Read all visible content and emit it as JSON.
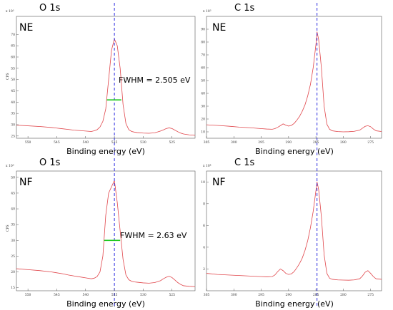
{
  "chart_data": [
    {
      "type": "line",
      "title": "O 1s",
      "label": "NE",
      "xlabel": "Binding energy (eV)",
      "ylabel": "CPS",
      "y_exponent": "x 10³",
      "xlim": [
        552,
        521
      ],
      "ylim": [
        24,
        78
      ],
      "xticks": [
        "550",
        "545",
        "540",
        "535",
        "530",
        "525"
      ],
      "yticks": [
        "70",
        "65",
        "60",
        "55",
        "50",
        "45",
        "40",
        "35",
        "30",
        "25"
      ],
      "peak_x": 535.0,
      "fwhm": {
        "text": "FWHM = 2.505 eV",
        "left": 536.3,
        "right": 533.8,
        "y": 41
      },
      "x": [
        552,
        550,
        548,
        546,
        545,
        544,
        543,
        542,
        541,
        540,
        539,
        538.5,
        538,
        537.5,
        537,
        536.5,
        536,
        535.5,
        535,
        534.5,
        534,
        533.5,
        533,
        532.5,
        532,
        531.5,
        531,
        530,
        529,
        528,
        527,
        526.5,
        526,
        525.5,
        525,
        524.5,
        524,
        523.5,
        523,
        522,
        521
      ],
      "y": [
        29.8,
        29.5,
        29.2,
        28.8,
        28.5,
        28.2,
        27.9,
        27.6,
        27.4,
        27.2,
        27.0,
        27.3,
        27.8,
        29,
        31.5,
        37,
        50,
        63,
        68,
        65,
        55,
        39,
        30.5,
        27.8,
        27.0,
        26.7,
        26.5,
        26.3,
        26.2,
        26.4,
        27.2,
        27.7,
        28.3,
        28.6,
        28.3,
        27.6,
        26.9,
        26.3,
        25.9,
        25.5,
        25.3
      ],
      "grid": false
    },
    {
      "type": "line",
      "title": "C 1s",
      "label": "NE",
      "xlabel": "Binding energy (eV)",
      "ylabel": "",
      "y_exponent": "x 10³",
      "xlim": [
        305,
        273
      ],
      "ylim": [
        5,
        100
      ],
      "xticks": [
        "305",
        "300",
        "295",
        "290",
        "285",
        "280",
        "275"
      ],
      "yticks": [
        "90",
        "80",
        "70",
        "60",
        "50",
        "40",
        "30",
        "20",
        "10"
      ],
      "peak_x": 284.8,
      "x": [
        305,
        303,
        301,
        299,
        297,
        295,
        294,
        293,
        292.5,
        292,
        291.5,
        291,
        290.5,
        290,
        289.5,
        289,
        288.5,
        288,
        287.5,
        287,
        286.5,
        286,
        285.5,
        285,
        284.8,
        284.5,
        284,
        283.5,
        283,
        282.5,
        282,
        281,
        280,
        279,
        278,
        277,
        276.5,
        276,
        275.5,
        275,
        274.5,
        274,
        273
      ],
      "y": [
        15.5,
        15,
        14.4,
        13.7,
        13.2,
        12.5,
        12.2,
        12.0,
        12.5,
        13.5,
        14.8,
        16.2,
        15.2,
        14.5,
        15,
        16.5,
        19,
        22,
        26,
        31,
        38,
        47,
        60,
        78,
        88,
        82,
        60,
        30,
        16,
        12,
        10.8,
        10.2,
        10.0,
        10.1,
        10.4,
        11.3,
        12.8,
        14.3,
        14.8,
        14.0,
        12.2,
        10.8,
        10.3
      ],
      "grid": false
    },
    {
      "type": "line",
      "title": "O 1s",
      "label": "NF",
      "xlabel": "Binding energy (eV)",
      "ylabel": "CPS",
      "y_exponent": "x 10³",
      "xlim": [
        552,
        521
      ],
      "ylim": [
        14,
        52
      ],
      "xticks": [
        "550",
        "545",
        "540",
        "535",
        "530",
        "525"
      ],
      "yticks": [
        "50",
        "45",
        "40",
        "35",
        "30",
        "25",
        "20",
        "15"
      ],
      "peak_x": 535.0,
      "fwhm": {
        "text": "FWHM = 2.63 eV",
        "left": 536.8,
        "right": 534.0,
        "y": 30
      },
      "x": [
        552,
        550,
        548,
        546,
        545,
        544,
        543,
        542,
        541,
        540,
        539,
        538.5,
        538,
        537.5,
        537,
        536.5,
        536,
        535.5,
        535,
        534.5,
        534,
        533.5,
        533,
        532.5,
        532,
        531.5,
        531,
        530,
        529,
        528,
        527,
        526.5,
        526,
        525.5,
        525,
        524.5,
        524,
        523.5,
        523,
        522,
        521
      ],
      "y": [
        21.0,
        20.7,
        20.4,
        20.0,
        19.7,
        19.4,
        19.0,
        18.7,
        18.4,
        18.1,
        17.8,
        18.0,
        18.5,
        20,
        25,
        38,
        45,
        47,
        49,
        42,
        33,
        24,
        19,
        17.5,
        17.0,
        16.8,
        16.7,
        16.5,
        16.4,
        16.6,
        17.2,
        17.8,
        18.3,
        18.6,
        18.2,
        17.4,
        16.6,
        16.0,
        15.6,
        15.4,
        15.3
      ],
      "grid": false
    },
    {
      "type": "line",
      "title": "C 1s",
      "label": "NF",
      "xlabel": "Binding energy (eV)",
      "ylabel": "",
      "y_exponent": "x 10⁴",
      "xlim": [
        305,
        273
      ],
      "ylim": [
        0,
        11
      ],
      "xticks": [
        "305",
        "300",
        "295",
        "290",
        "285",
        "280",
        "275"
      ],
      "yticks": [
        "10",
        "8",
        "6",
        "4",
        "2"
      ],
      "peak_x": 284.8,
      "x": [
        305,
        303,
        301,
        299,
        297,
        295,
        294,
        293,
        292.5,
        292,
        291.5,
        291,
        290.5,
        290,
        289.5,
        289,
        288.5,
        288,
        287.5,
        287,
        286.5,
        286,
        285.5,
        285,
        284.8,
        284.5,
        284,
        283.5,
        283,
        282.5,
        282,
        281,
        280,
        279,
        278,
        277,
        276.5,
        276,
        275.5,
        275,
        274.5,
        274,
        273
      ],
      "y": [
        1.6,
        1.5,
        1.45,
        1.4,
        1.35,
        1.3,
        1.28,
        1.3,
        1.45,
        1.75,
        2.0,
        1.85,
        1.6,
        1.5,
        1.55,
        1.75,
        2.1,
        2.5,
        3.0,
        3.7,
        4.6,
        5.8,
        7.3,
        9.2,
        10.0,
        9.3,
        6.8,
        3.3,
        1.6,
        1.15,
        1.05,
        1.0,
        0.98,
        0.97,
        1.0,
        1.1,
        1.35,
        1.7,
        1.85,
        1.6,
        1.3,
        1.1,
        1.05
      ],
      "grid": false
    }
  ]
}
